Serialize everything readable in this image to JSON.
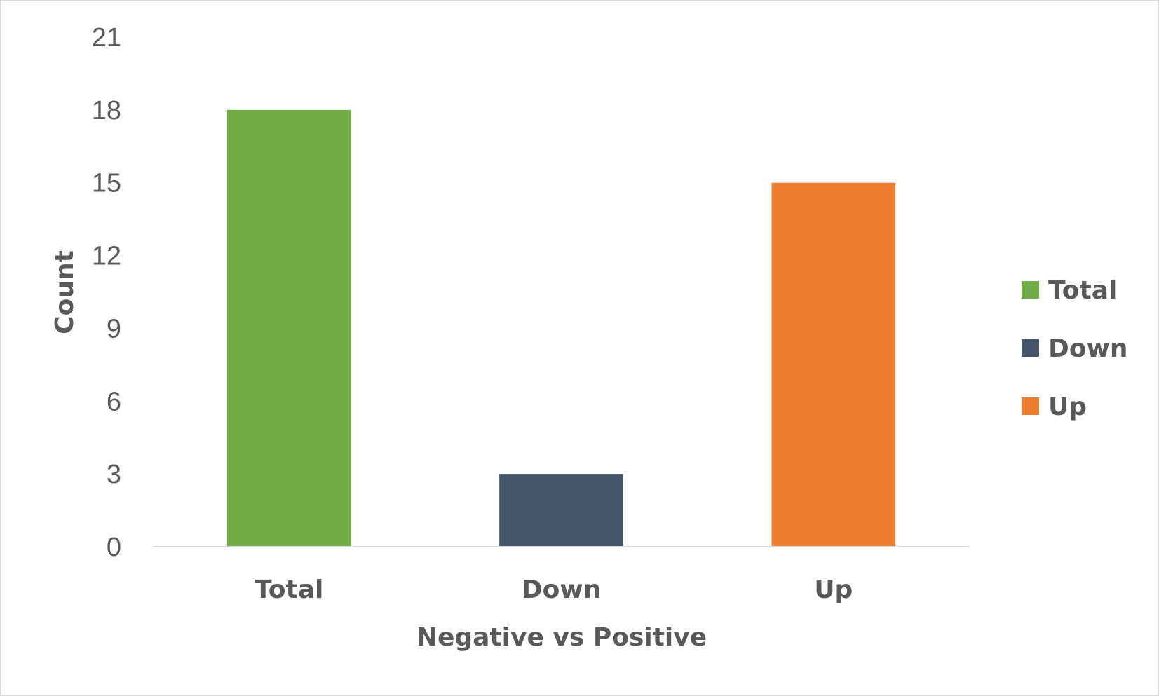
{
  "chart_data": {
    "type": "bar",
    "categories": [
      "Total",
      "Down",
      "Up"
    ],
    "values": [
      18,
      3,
      15
    ],
    "colors": [
      "#70ad47",
      "#44546a",
      "#ed7d31"
    ],
    "xlabel": "Negative vs Positive",
    "ylabel": "Count",
    "ylim": [
      0,
      21
    ],
    "yticks": [
      0,
      3,
      6,
      9,
      12,
      15,
      18,
      21
    ],
    "grid": false,
    "legend": {
      "position": "right",
      "entries": [
        {
          "label": "Total",
          "color": "#70ad47"
        },
        {
          "label": "Down",
          "color": "#44546a"
        },
        {
          "label": "Up",
          "color": "#ed7d31"
        }
      ]
    }
  }
}
